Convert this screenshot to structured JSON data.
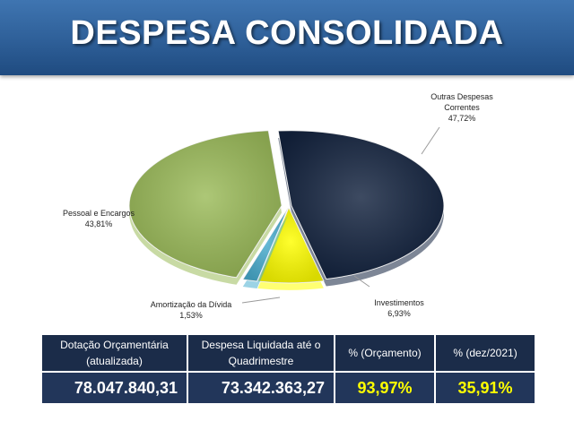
{
  "header": {
    "title": "DESPESA CONSOLIDADA"
  },
  "chart_data": {
    "type": "pie",
    "slices": [
      {
        "label": "Outras Despesas Correntes",
        "value": 47.72,
        "value_label": "47,72%",
        "color": "#13233f"
      },
      {
        "label": "Investimentos",
        "value": 6.93,
        "value_label": "6,93%",
        "color": "#ffff00"
      },
      {
        "label": "Amortização da Dívida",
        "value": 1.53,
        "value_label": "1,53%",
        "color": "#4aaed0"
      },
      {
        "label": "Pessoal e Encargos",
        "value": 43.81,
        "value_label": "43,81%",
        "color": "#9bbb59"
      }
    ]
  },
  "labels": {
    "outras_line1": "Outras Despesas",
    "outras_line2": "Correntes",
    "outras_value": "47,72%",
    "pessoal_line1": "Pessoal e Encargos",
    "pessoal_value": "43,81%",
    "amort_line1": "Amortização da Dívida",
    "amort_value": "1,53%",
    "invest_line1": "Investimentos",
    "invest_value": "6,93%"
  },
  "table": {
    "headers": {
      "dotacao_line1": "Dotação Orçamentária",
      "dotacao_line2": "(atualizada)",
      "liquidada_line1": "Despesa Liquidada até o",
      "liquidada_line2": "Quadrimestre",
      "orcamento": "%  (Orçamento)",
      "dez": "%  (dez/2021)"
    },
    "values": {
      "dotacao": "78.047.840,31",
      "liquidada": "73.342.363,27",
      "orcamento": "93,97%",
      "dez": "35,91%"
    }
  }
}
